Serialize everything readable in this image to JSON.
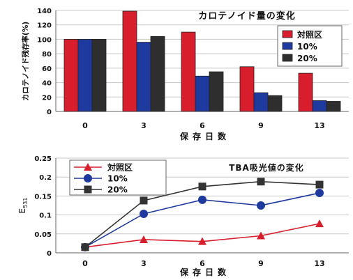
{
  "chart_data": [
    {
      "type": "bar",
      "title": "カロテノイド量の変化",
      "xlabel": "保存日数",
      "ylabel": "カロテノイド残存率(%)",
      "categories": [
        "0",
        "3",
        "6",
        "9",
        "13"
      ],
      "yticks": [
        "0",
        "20",
        "40",
        "60",
        "80",
        "100",
        "120",
        "140"
      ],
      "ylim": [
        0,
        140
      ],
      "grid": "horizontal",
      "legend_position": "top-right",
      "series": [
        {
          "name": "対照区",
          "color": "#d81e2c",
          "values": [
            100,
            139,
            110,
            62,
            53
          ]
        },
        {
          "name": "10%",
          "color": "#1f3a9e",
          "values": [
            100,
            96,
            49,
            26,
            15
          ]
        },
        {
          "name": "20%",
          "color": "#2e2e2e",
          "values": [
            100,
            104,
            55,
            22,
            14
          ]
        }
      ]
    },
    {
      "type": "line",
      "title": "TBA吸光値の変化",
      "xlabel": "保存日数",
      "ylabel": "E531",
      "x": [
        0,
        3,
        6,
        9,
        13
      ],
      "xticks": [
        "0",
        "3",
        "6",
        "9",
        "13"
      ],
      "yticks": [
        "0",
        "0.05",
        "0.1",
        "0.15",
        "0.2",
        "0.25"
      ],
      "ylim": [
        0,
        0.25
      ],
      "grid": "horizontal",
      "legend_position": "top-left",
      "series": [
        {
          "name": "対照区",
          "color": "#d81e2c",
          "marker": "triangle",
          "values": [
            0.015,
            0.035,
            0.03,
            0.045,
            0.077
          ]
        },
        {
          "name": "10%",
          "color": "#1f3a9e",
          "marker": "circle",
          "values": [
            0.015,
            0.103,
            0.14,
            0.125,
            0.158
          ]
        },
        {
          "name": "20%",
          "color": "#333333",
          "marker": "square",
          "values": [
            0.015,
            0.138,
            0.175,
            0.188,
            0.18
          ]
        }
      ]
    }
  ]
}
